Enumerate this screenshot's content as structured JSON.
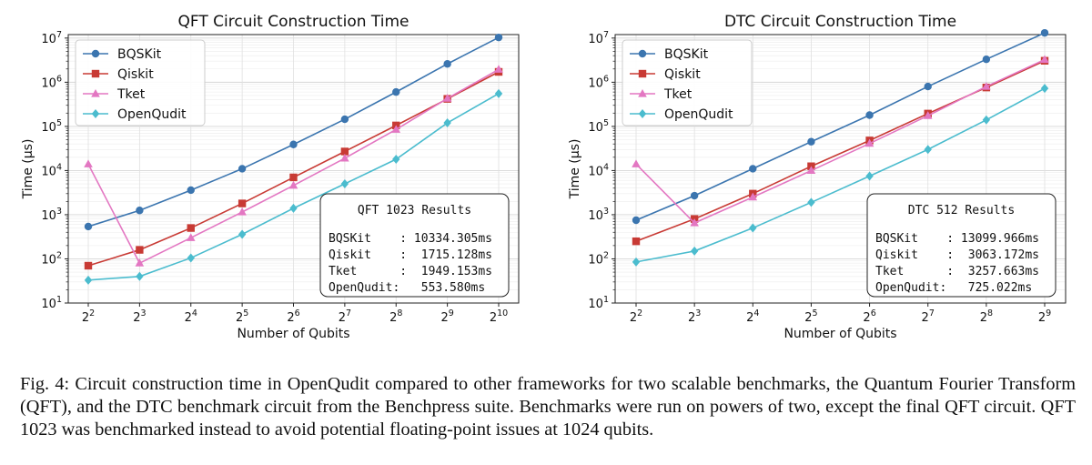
{
  "chart_data": [
    {
      "type": "line",
      "title": "QFT Circuit Construction Time",
      "xlabel": "Number of Qubits",
      "ylabel": "Time (μs)",
      "yscale": "log",
      "ylim": [
        10,
        12000000
      ],
      "x": [
        2,
        3,
        4,
        5,
        6,
        7,
        8,
        9,
        10
      ],
      "xtick_base": "2",
      "xtick_exps": [
        "2",
        "3",
        "4",
        "5",
        "6",
        "7",
        "8",
        "9",
        "10"
      ],
      "ytick_exps": [
        "1",
        "2",
        "3",
        "4",
        "5",
        "6",
        "7"
      ],
      "legend_position": "top-left",
      "grid": true,
      "series": [
        {
          "name": "BQSKit",
          "color": "#3b75af",
          "marker": "circle",
          "values": [
            540,
            1250,
            3600,
            11000,
            39000,
            145000,
            600000,
            2600000,
            10334305
          ]
        },
        {
          "name": "Qiskit",
          "color": "#c83a34",
          "marker": "square",
          "values": [
            70,
            160,
            500,
            1800,
            7000,
            27000,
            105000,
            420000,
            1715128
          ]
        },
        {
          "name": "Tket",
          "color": "#e377c2",
          "marker": "triangle",
          "values": [
            14000,
            80,
            300,
            1150,
            4600,
            19000,
            85000,
            430000,
            1949153
          ]
        },
        {
          "name": "OpenQudit",
          "color": "#4bbcce",
          "marker": "diamond",
          "values": [
            33,
            40,
            105,
            360,
            1400,
            5000,
            18000,
            120000,
            553580
          ]
        }
      ],
      "results_box": {
        "title": "QFT 1023 Results",
        "rows": [
          "BQSKit    : 10334.305ms",
          "Qiskit    :  1715.128ms",
          "Tket      :  1949.153ms",
          "OpenQudit:   553.580ms"
        ]
      }
    },
    {
      "type": "line",
      "title": "DTC Circuit Construction Time",
      "xlabel": "Number of Qubits",
      "ylabel": "Time (μs)",
      "yscale": "log",
      "ylim": [
        10,
        12000000
      ],
      "x": [
        2,
        3,
        4,
        5,
        6,
        7,
        8,
        9
      ],
      "xtick_base": "2",
      "xtick_exps": [
        "2",
        "3",
        "4",
        "5",
        "6",
        "7",
        "8",
        "9"
      ],
      "ytick_exps": [
        "1",
        "2",
        "3",
        "4",
        "5",
        "6",
        "7"
      ],
      "legend_position": "top-left",
      "grid": true,
      "series": [
        {
          "name": "BQSKit",
          "color": "#3b75af",
          "marker": "circle",
          "values": [
            750,
            2700,
            11000,
            45000,
            180000,
            800000,
            3300000,
            13099966
          ]
        },
        {
          "name": "Qiskit",
          "color": "#c83a34",
          "marker": "square",
          "values": [
            250,
            800,
            3000,
            12500,
            48000,
            195000,
            760000,
            3063172
          ]
        },
        {
          "name": "Tket",
          "color": "#e377c2",
          "marker": "triangle",
          "values": [
            14000,
            650,
            2500,
            10000,
            41000,
            175000,
            800000,
            3257663
          ]
        },
        {
          "name": "OpenQudit",
          "color": "#4bbcce",
          "marker": "diamond",
          "values": [
            85,
            150,
            500,
            1900,
            7500,
            30000,
            140000,
            725022
          ]
        }
      ],
      "results_box": {
        "title": "DTC 512 Results",
        "rows": [
          "BQSKit    : 13099.966ms",
          "Qiskit    :  3063.172ms",
          "Tket      :  3257.663ms",
          "OpenQudit:   725.022ms"
        ]
      }
    }
  ],
  "caption": "Fig. 4: Circuit construction time in OpenQudit compared to other frameworks for two scalable benchmarks, the Quantum Fourier Transform (QFT), and the DTC benchmark circuit from the Benchpress suite. Benchmarks were run on powers of two, except the final QFT circuit. QFT 1023 was benchmarked instead to avoid potential floating-point issues at 1024 qubits."
}
